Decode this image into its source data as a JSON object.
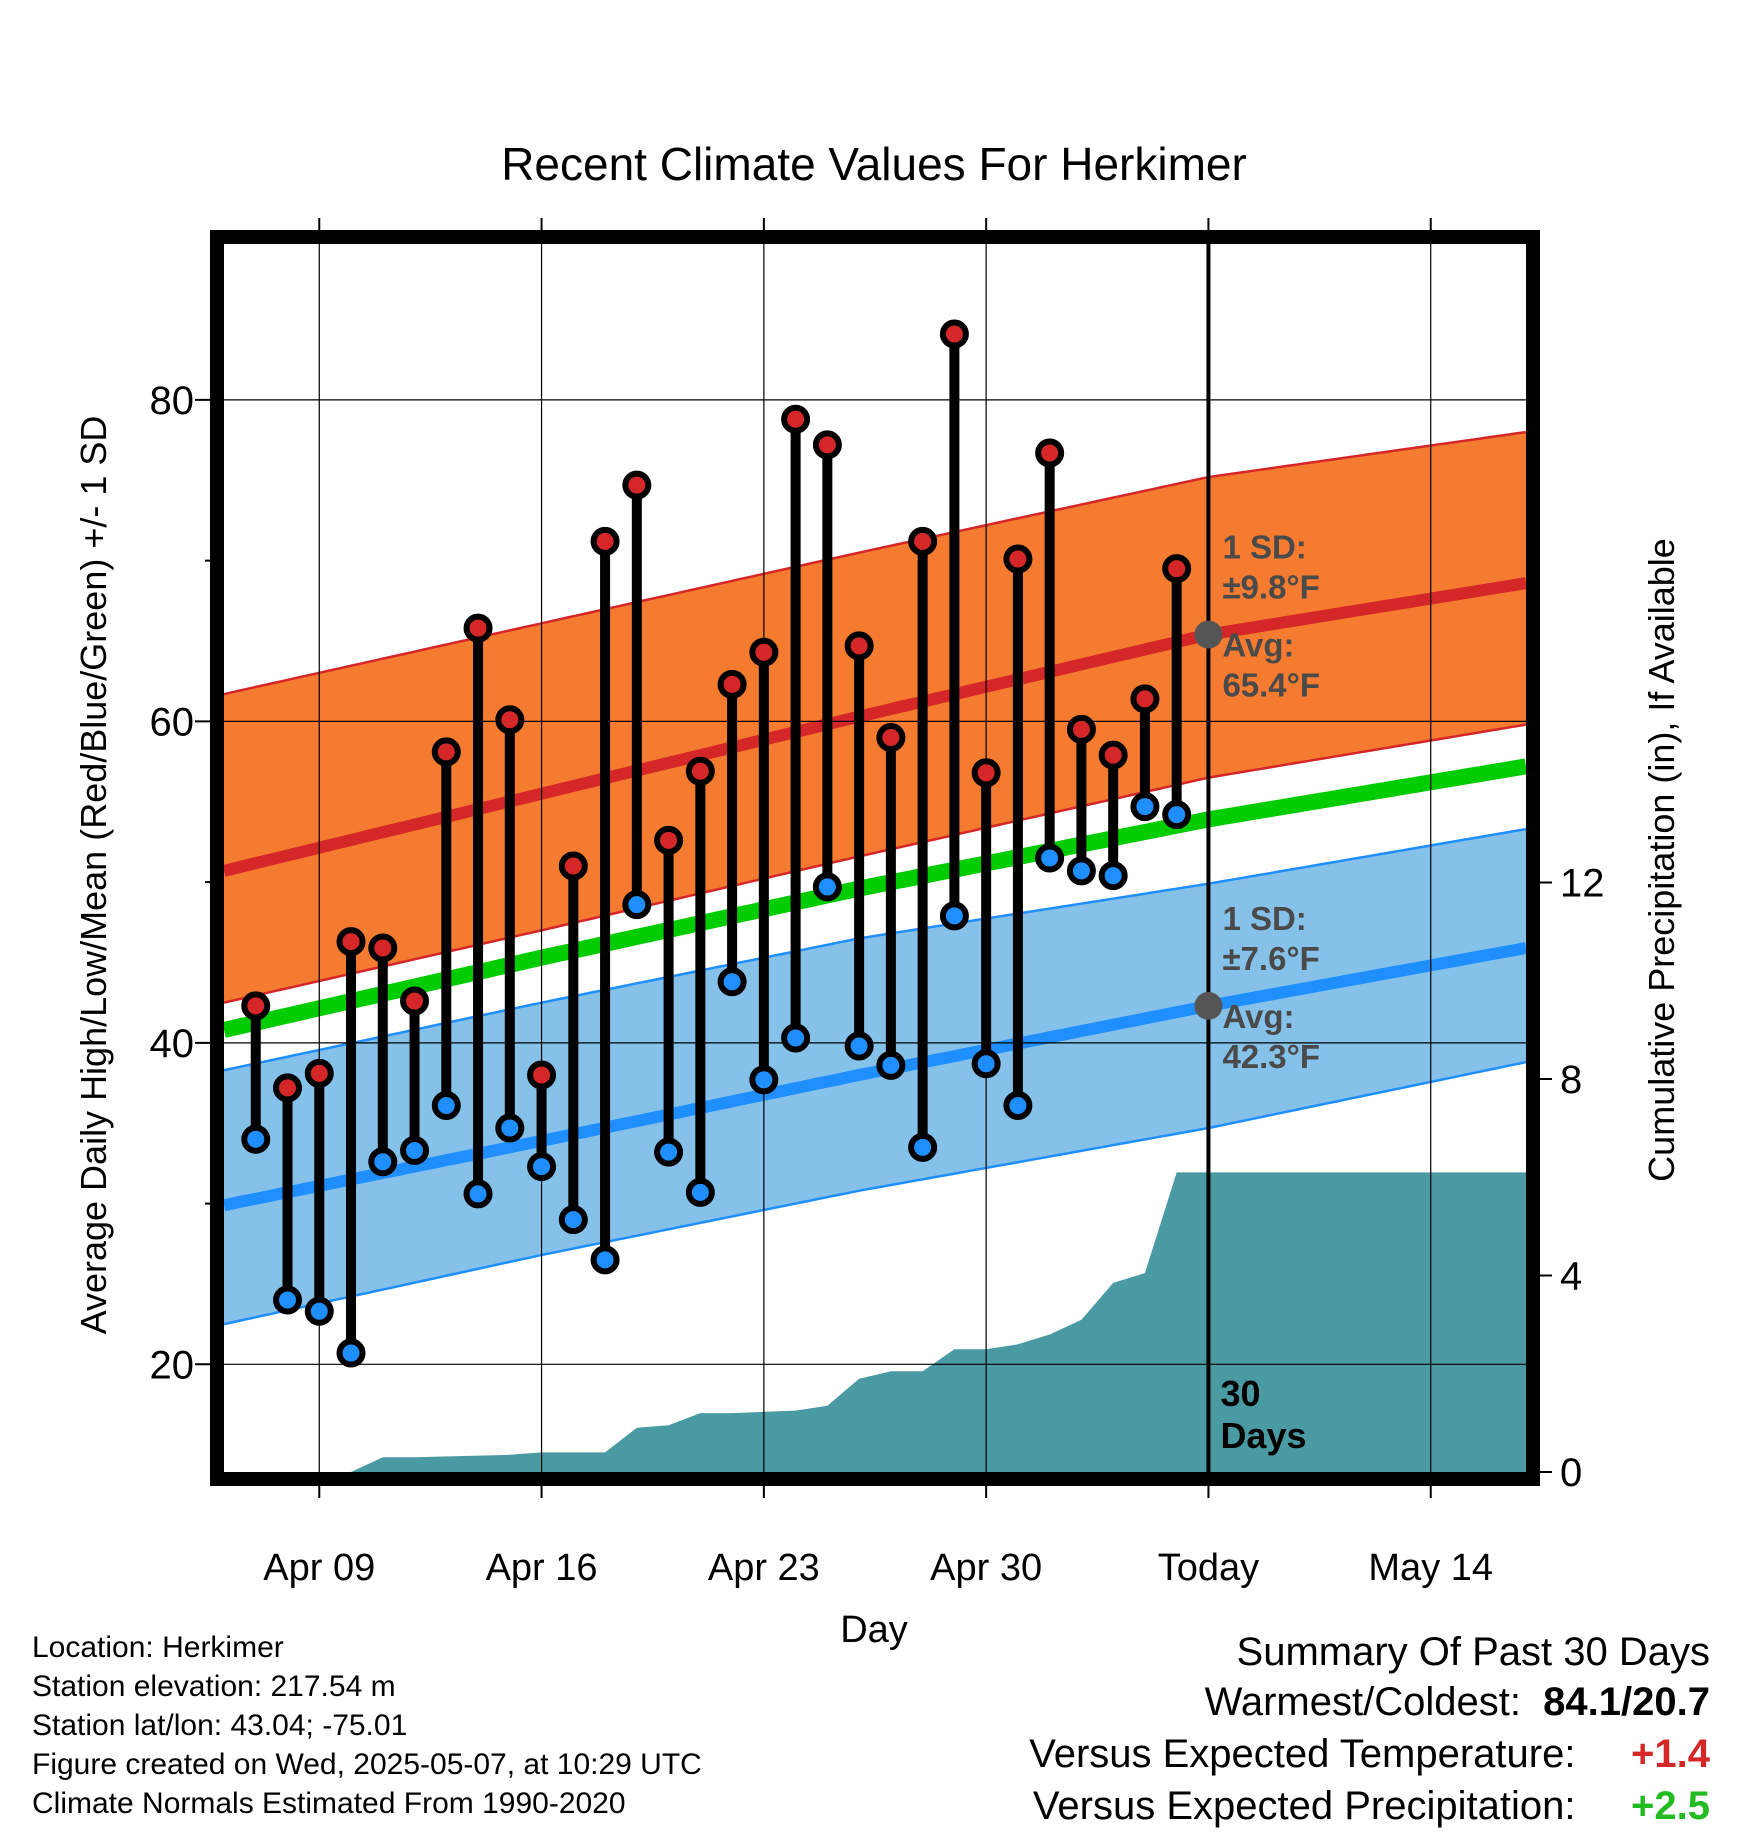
{
  "chart_data": {
    "type": "line",
    "title": "Recent Climate Values For Herkimer",
    "xlabel": "Day",
    "ylabel": "Average Daily High/Low/Mean (Red/Blue/Green) +/- 1 SD",
    "y2label": "Cumulative Precipitation (in), If Available",
    "xlim": [
      "2025-04-06",
      "2025-05-17"
    ],
    "ylim": [
      13.3,
      89.7
    ],
    "y2lim": [
      0,
      25
    ],
    "x_ticks": [
      "2025-04-09",
      "2025-04-16",
      "2025-04-23",
      "2025-04-30",
      "2025-05-07",
      "2025-05-14"
    ],
    "x_tick_labels": [
      "Apr 09",
      "Apr 16",
      "Apr 23",
      "Apr 30",
      "Today",
      "May 14"
    ],
    "y_ticks": [
      20,
      40,
      60,
      80
    ],
    "y2_ticks": [
      0,
      4,
      8,
      12
    ],
    "grid": true,
    "today": "2025-05-07",
    "dates": [
      "2025-04-07",
      "2025-04-08",
      "2025-04-09",
      "2025-04-10",
      "2025-04-11",
      "2025-04-12",
      "2025-04-13",
      "2025-04-14",
      "2025-04-15",
      "2025-04-16",
      "2025-04-17",
      "2025-04-18",
      "2025-04-19",
      "2025-04-20",
      "2025-04-21",
      "2025-04-22",
      "2025-04-23",
      "2025-04-24",
      "2025-04-25",
      "2025-04-26",
      "2025-04-27",
      "2025-04-28",
      "2025-04-29",
      "2025-04-30",
      "2025-05-01",
      "2025-05-02",
      "2025-05-03",
      "2025-05-04",
      "2025-05-05",
      "2025-05-06"
    ],
    "series": [
      {
        "name": "High",
        "color": "#d62728",
        "values": [
          42.3,
          37.2,
          38.1,
          46.3,
          45.9,
          42.6,
          58.1,
          65.8,
          60.1,
          38.0,
          51.0,
          71.2,
          74.7,
          52.6,
          56.9,
          62.3,
          64.3,
          78.8,
          77.2,
          64.7,
          59.0,
          71.2,
          84.1,
          56.8,
          70.1,
          76.7,
          59.5,
          57.9,
          61.4,
          69.5
        ]
      },
      {
        "name": "Low",
        "color": "#1f8fff",
        "values": [
          34.0,
          24.0,
          23.3,
          20.7,
          32.6,
          33.3,
          36.1,
          30.6,
          34.7,
          32.3,
          29.0,
          26.5,
          48.6,
          33.2,
          30.7,
          43.8,
          37.7,
          40.3,
          49.7,
          39.8,
          38.6,
          33.5,
          47.9,
          38.7,
          36.1,
          51.5,
          50.7,
          50.4,
          54.7,
          54.2
        ]
      }
    ],
    "normals": {
      "dates": [
        "2025-04-06",
        "2025-04-16",
        "2025-04-26",
        "2025-05-07",
        "2025-05-17"
      ],
      "avg_high": [
        50.7,
        55.5,
        60.3,
        65.4,
        68.6
      ],
      "avg_high_upper": [
        61.7,
        66.1,
        70.5,
        75.2,
        78.0
      ],
      "avg_high_lower": [
        42.5,
        47.0,
        51.6,
        56.5,
        59.8
      ],
      "avg_mean": [
        40.8,
        45.3,
        49.6,
        53.9,
        57.2
      ],
      "avg_low": [
        29.9,
        33.9,
        38.0,
        42.3,
        45.9
      ],
      "avg_low_upper": [
        38.3,
        42.5,
        46.5,
        49.9,
        53.3
      ],
      "avg_low_lower": [
        22.5,
        26.8,
        30.8,
        34.7,
        38.8
      ]
    },
    "precip": {
      "dates": [
        "2025-04-10",
        "2025-04-11",
        "2025-04-12",
        "2025-04-15",
        "2025-04-16",
        "2025-04-18",
        "2025-04-19",
        "2025-04-20",
        "2025-04-21",
        "2025-04-22",
        "2025-04-24",
        "2025-04-25",
        "2025-04-26",
        "2025-04-27",
        "2025-04-28",
        "2025-04-29",
        "2025-04-30",
        "2025-05-01",
        "2025-05-02",
        "2025-05-03",
        "2025-05-04",
        "2025-05-05",
        "2025-05-06",
        "2025-05-17"
      ],
      "values": [
        0.0,
        0.3,
        0.3,
        0.35,
        0.4,
        0.4,
        0.9,
        0.95,
        1.2,
        1.2,
        1.25,
        1.35,
        1.9,
        2.05,
        2.05,
        2.5,
        2.5,
        2.6,
        2.8,
        3.1,
        3.85,
        4.05,
        6.1,
        6.1
      ]
    },
    "annotations": {
      "high_sd_label": "1 SD:",
      "high_sd_value": "±9.8°F",
      "high_avg_label": "Avg:",
      "high_avg_value": "65.4°F",
      "low_sd_label": "1 SD:",
      "low_sd_value": "±7.6°F",
      "low_avg_label": "Avg:",
      "low_avg_value": "42.3°F",
      "days_number": "30",
      "days_label": "Days"
    },
    "colors": {
      "high_band": "#f47b2f",
      "high_line": "#d62728",
      "low_band": "#85c1e9",
      "low_line": "#1f8fff",
      "mean_line": "#00cc00",
      "precip_fill": "#4a9aa3"
    }
  },
  "info": {
    "location": "Location: Herkimer",
    "elevation": "Station elevation: 217.54 m",
    "latlon": "Station lat/lon: 43.04; -75.01",
    "created": "Figure created on Wed, 2025-05-07, at 10:29 UTC",
    "normals": "Climate Normals Estimated From 1990-2020"
  },
  "summary": {
    "heading": "Summary Of Past 30 Days",
    "warm_cold_label": "Warmest/Coldest:",
    "warm_cold_value": "84.1/20.7",
    "temp_label": "Versus Expected Temperature:",
    "temp_value": "+1.4",
    "temp_color": "#d62728",
    "precip_label": "Versus Expected Precipitation:",
    "precip_value": "+2.5",
    "precip_color": "#22bb22"
  }
}
